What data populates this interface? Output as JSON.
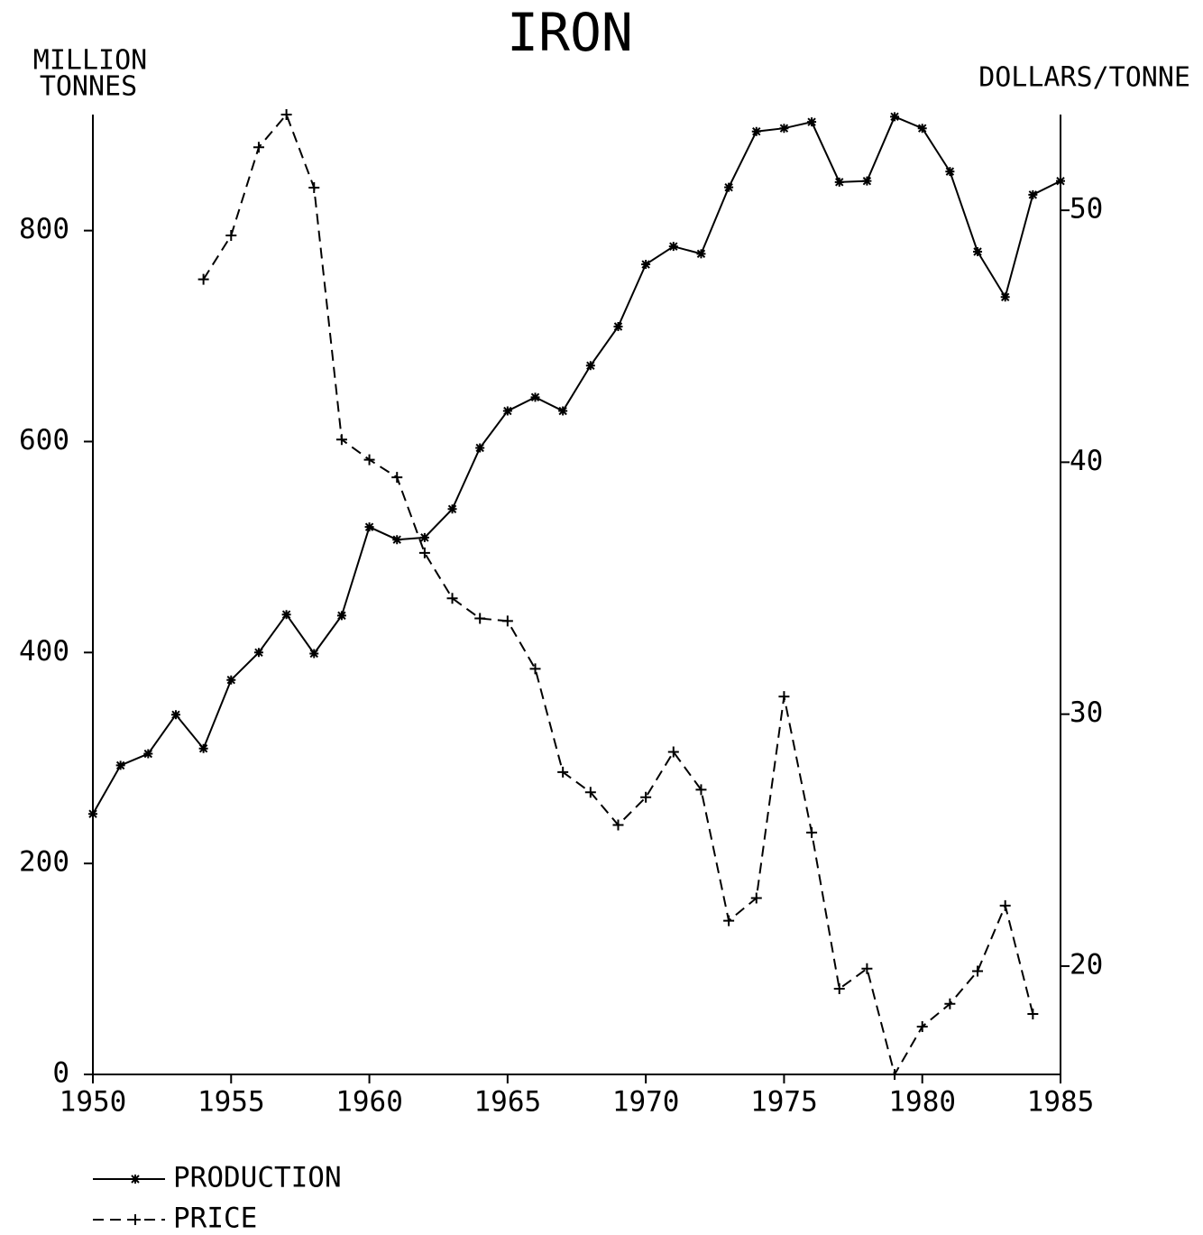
{
  "chart_data": {
    "type": "line",
    "title": "IRON",
    "y_label": [
      "MILLION",
      "TONNES"
    ],
    "y2_label": "DOLLARS/TONNE",
    "x": [
      1950,
      1951,
      1952,
      1953,
      1954,
      1955,
      1956,
      1957,
      1958,
      1959,
      1960,
      1961,
      1962,
      1963,
      1964,
      1965,
      1966,
      1967,
      1968,
      1969,
      1970,
      1971,
      1972,
      1973,
      1974,
      1975,
      1976,
      1977,
      1978,
      1979,
      1980,
      1981,
      1982,
      1983,
      1984,
      1985
    ],
    "xlim": [
      1950,
      1985
    ],
    "xticks": [
      1950,
      1955,
      1960,
      1965,
      1970,
      1975,
      1980,
      1985
    ],
    "ylim": [
      0,
      910
    ],
    "yticks": [
      0,
      200,
      400,
      600,
      800
    ],
    "y2lim": [
      15.7,
      53.8
    ],
    "y2ticks": [
      20,
      30,
      40,
      50
    ],
    "grid": false,
    "legend": "bottom-left",
    "series": [
      {
        "name": "PRODUCTION",
        "color": "#000000",
        "line_style": "solid",
        "marker": "asterisk",
        "values": [
          247,
          293,
          304,
          341,
          309,
          374,
          400,
          436,
          399,
          435,
          519,
          507,
          509,
          536,
          594,
          629,
          642,
          629,
          672,
          709,
          768,
          785,
          778,
          841,
          894,
          897,
          903,
          846,
          847,
          908,
          897,
          856,
          780,
          737,
          834,
          847
        ]
      },
      {
        "name": "PRICE",
        "color": "#000000",
        "line_style": "dashed",
        "marker": "plus",
        "axis": "y2",
        "values": [
          null,
          null,
          null,
          null,
          47.26,
          49.0,
          52.5,
          53.8,
          50.9,
          40.9,
          40.1,
          39.4,
          36.4,
          34.6,
          33.8,
          33.7,
          31.8,
          27.7,
          26.9,
          25.6,
          26.7,
          28.5,
          27.0,
          21.8,
          22.7,
          30.7,
          25.3,
          19.1,
          19.9,
          15.7,
          17.6,
          18.5,
          19.8,
          22.4,
          18.1,
          null
        ]
      }
    ]
  }
}
